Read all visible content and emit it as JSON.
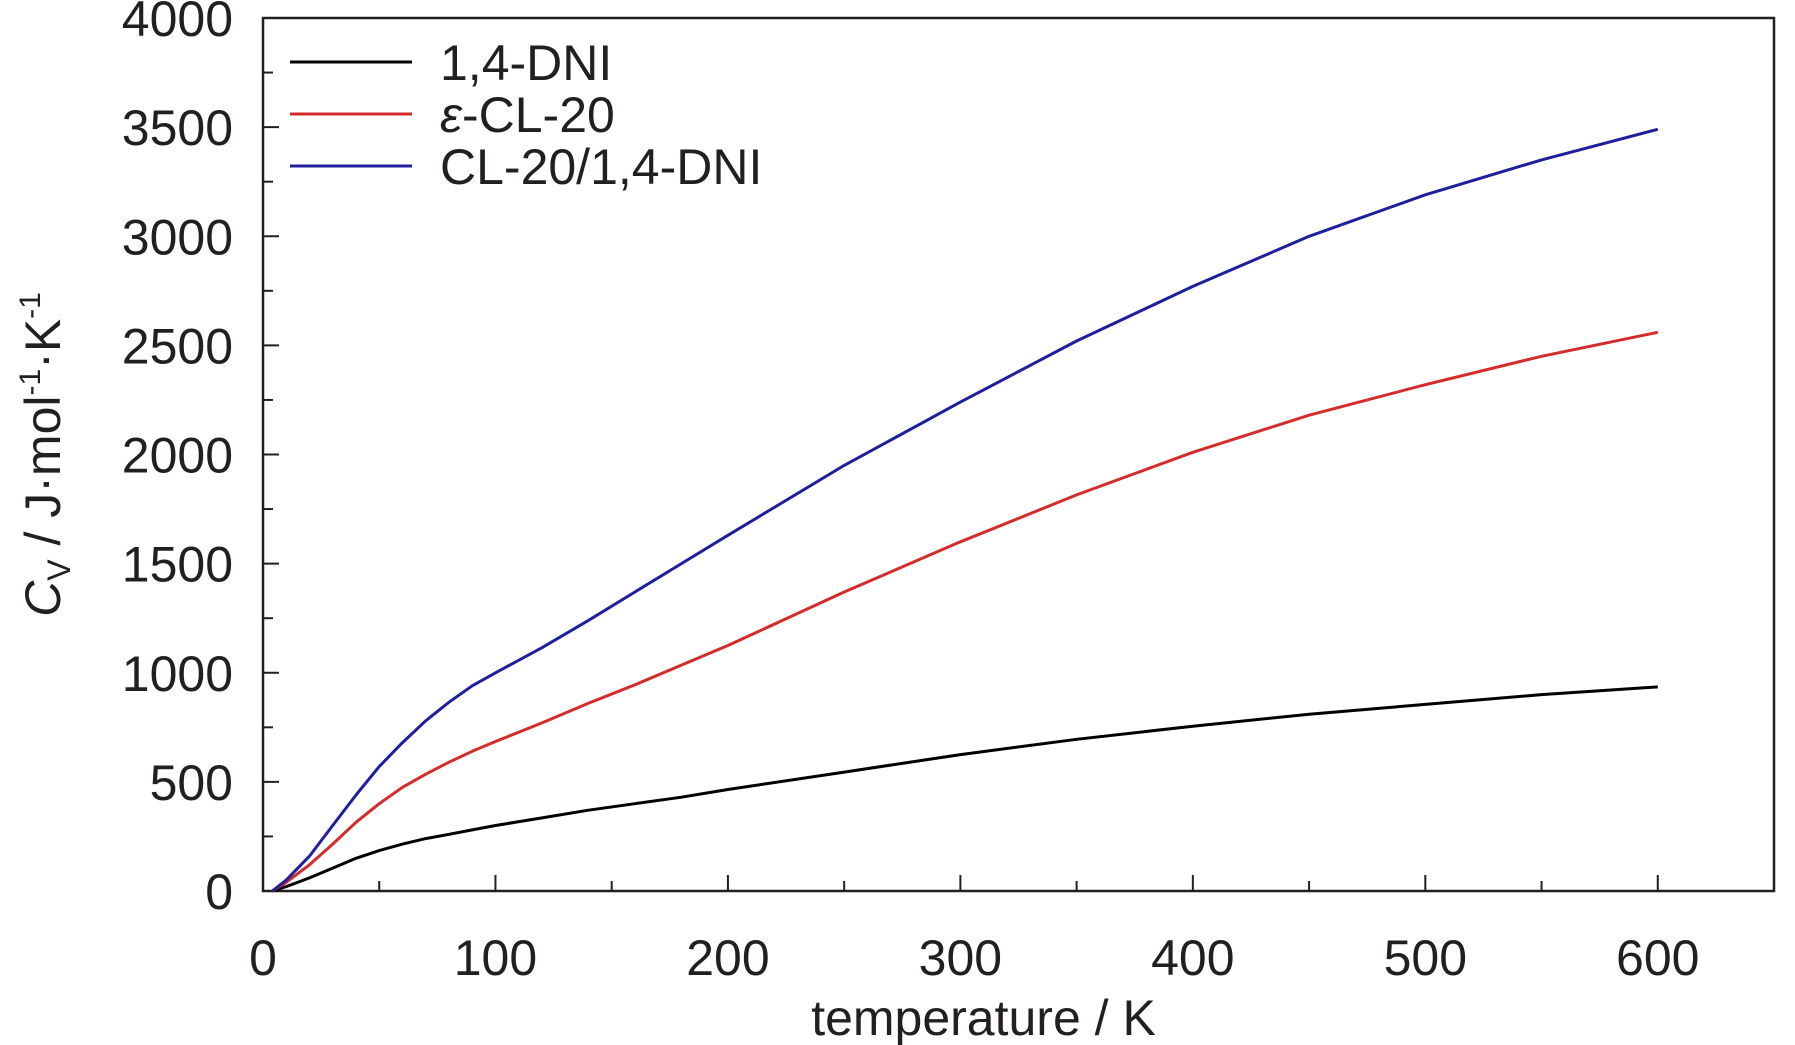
{
  "chart_data": {
    "type": "line",
    "title": "",
    "xlabel": "temperature / K",
    "ylabel": {
      "main": "C",
      "sub": "V",
      "unit": " / J·mol",
      "sup1": "-1",
      "mid": "·K",
      "sup2": "-1"
    },
    "xlim": [
      0,
      650
    ],
    "ylim": [
      0,
      4000
    ],
    "xticks": [
      0,
      100,
      200,
      300,
      400,
      500,
      600
    ],
    "yticks": [
      0,
      500,
      1000,
      1500,
      2000,
      2500,
      3000,
      3500,
      4000
    ],
    "x_minor_step": 50,
    "y_minor_step": 250,
    "grid": false,
    "legend_position": "top-left",
    "series": [
      {
        "name": "1,4-DNI",
        "color": "#000000",
        "x": [
          4,
          10,
          20,
          30,
          40,
          50,
          60,
          70,
          80,
          90,
          100,
          120,
          140,
          160,
          180,
          200,
          250,
          300,
          350,
          400,
          450,
          500,
          550,
          600
        ],
        "y": [
          0,
          20,
          60,
          105,
          150,
          185,
          215,
          240,
          260,
          280,
          300,
          335,
          370,
          400,
          430,
          465,
          545,
          625,
          695,
          755,
          810,
          855,
          900,
          935
        ]
      },
      {
        "name_prefix": "ε",
        "name": "-CL-20",
        "color": "#d42b2b",
        "x": [
          4,
          10,
          20,
          30,
          40,
          50,
          60,
          70,
          80,
          90,
          100,
          120,
          140,
          160,
          180,
          200,
          250,
          300,
          350,
          400,
          450,
          500,
          550,
          600
        ],
        "y": [
          0,
          40,
          120,
          215,
          315,
          400,
          475,
          535,
          590,
          640,
          685,
          770,
          860,
          945,
          1035,
          1125,
          1370,
          1600,
          1815,
          2010,
          2180,
          2320,
          2450,
          2560
        ]
      },
      {
        "name": "CL-20/1,4-DNI",
        "color": "#1f1f9e",
        "x": [
          4,
          10,
          20,
          30,
          40,
          50,
          60,
          70,
          80,
          90,
          100,
          120,
          140,
          160,
          180,
          200,
          250,
          300,
          350,
          400,
          450,
          500,
          550,
          600
        ],
        "y": [
          0,
          50,
          160,
          300,
          440,
          570,
          680,
          780,
          865,
          940,
          1000,
          1115,
          1240,
          1370,
          1500,
          1630,
          1950,
          2240,
          2520,
          2770,
          3000,
          3190,
          3350,
          3490
        ]
      }
    ]
  }
}
